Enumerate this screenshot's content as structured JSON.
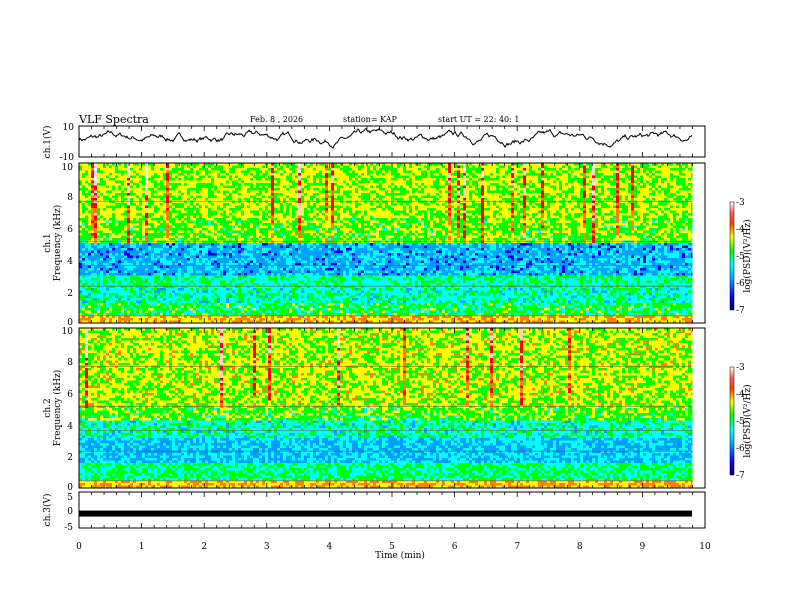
{
  "header": {
    "title": "VLF Spectra",
    "date": "Feb. 8 , 2026",
    "station": "station= KAP",
    "start": "start UT =  22: 40: 1"
  },
  "colors": {
    "scale": [
      "#000080",
      "#0000ff",
      "#00a0ff",
      "#00ffff",
      "#00ff00",
      "#ffff00",
      "#ff8000",
      "#ff0000",
      "#ffd0d0",
      "#ffffff"
    ],
    "waveform": "#000000"
  },
  "chart_data": [
    {
      "type": "line",
      "id": "ch1_waveform",
      "ylabel": "ch.1(V)",
      "ylim": [
        -10,
        10
      ],
      "ytick_labels": [
        "10",
        "-10"
      ],
      "xlim": [
        0,
        10
      ],
      "baseline": 2
    },
    {
      "type": "heatmap",
      "id": "ch1_spectrogram",
      "ylabel_line1": "ch.1",
      "ylabel_line2": "Frequency (kHz)",
      "ylim": [
        0,
        10
      ],
      "yticks": [
        "0",
        "2",
        "4",
        "6",
        "8",
        "10"
      ],
      "xlim": [
        0,
        9.8
      ],
      "bands": [
        {
          "from": 0,
          "to": 0.5,
          "level": 5.5
        },
        {
          "from": 0.5,
          "to": 1.2,
          "level": 3.8
        },
        {
          "from": 1.2,
          "to": 2.2,
          "level": 3.2
        },
        {
          "from": 2.2,
          "to": 3.0,
          "level": 3.4
        },
        {
          "from": 3.0,
          "to": 5.0,
          "level": 2.2
        },
        {
          "from": 5.0,
          "to": 6.5,
          "level": 4.3
        },
        {
          "from": 6.5,
          "to": 10,
          "level": 4.6
        }
      ],
      "colorbar": {
        "label": "log(PSD)(V²/Hz)",
        "ticks": [
          "-3",
          "-4",
          "-5",
          "-6",
          "-7"
        ],
        "range": [
          -7,
          -3
        ]
      }
    },
    {
      "type": "heatmap",
      "id": "ch2_spectrogram",
      "ylabel_line1": "ch.2",
      "ylabel_line2": "Frequency (kHz)",
      "ylim": [
        0,
        10
      ],
      "yticks": [
        "0",
        "2",
        "4",
        "6",
        "8",
        "10"
      ],
      "xlim": [
        0,
        9.8
      ],
      "bands": [
        {
          "from": 0,
          "to": 0.5,
          "level": 5.5
        },
        {
          "from": 0.5,
          "to": 1.5,
          "level": 3.6
        },
        {
          "from": 1.5,
          "to": 3.2,
          "level": 2.4
        },
        {
          "from": 3.2,
          "to": 4.2,
          "level": 3.2
        },
        {
          "from": 4.2,
          "to": 5.2,
          "level": 4.2
        },
        {
          "from": 5.2,
          "to": 10,
          "level": 4.7
        }
      ],
      "colorbar": {
        "label": "log(PSD)(V²/Hz)",
        "ticks": [
          "-3",
          "-4",
          "-5",
          "-6",
          "-7"
        ],
        "range": [
          -7,
          -3
        ]
      }
    },
    {
      "type": "line",
      "id": "ch3_waveform",
      "ylabel": "ch.3(V)",
      "ylim": [
        -5,
        5
      ],
      "yticks": [
        "5",
        "0",
        "-5"
      ],
      "xlim": [
        0,
        10
      ],
      "level": -1
    }
  ],
  "xaxis": {
    "label": "Time (min)",
    "ticks": [
      "0",
      "1",
      "2",
      "3",
      "4",
      "5",
      "6",
      "7",
      "8",
      "9",
      "10"
    ]
  }
}
